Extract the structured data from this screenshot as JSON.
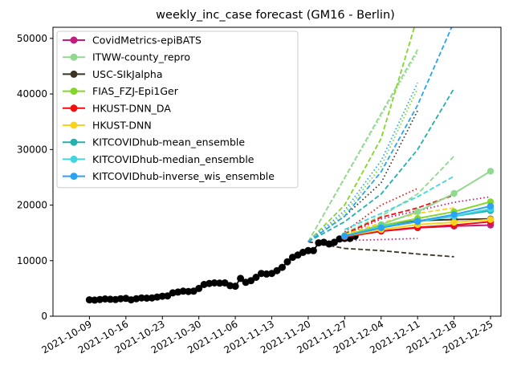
{
  "chart_data": {
    "type": "line",
    "title": "weekly_inc_case forecast (GM16 - Berlin)",
    "xlabel": "",
    "ylabel": "",
    "x_axis": {
      "type": "date",
      "range": [
        "2021-10-02",
        "2021-12-27"
      ],
      "ticks": [
        "2021-10-09",
        "2021-10-16",
        "2021-10-23",
        "2021-10-30",
        "2021-11-06",
        "2021-11-13",
        "2021-11-20",
        "2021-11-27",
        "2021-12-04",
        "2021-12-11",
        "2021-12-18",
        "2021-12-25"
      ]
    },
    "y_axis": {
      "range": [
        0,
        52000
      ],
      "ticks": [
        0,
        10000,
        20000,
        30000,
        40000,
        50000
      ]
    },
    "legend_position": "top-left",
    "grid": false,
    "observed": {
      "color": "#000000",
      "points": [
        [
          "2021-10-09",
          2950
        ],
        [
          "2021-10-10",
          2900
        ],
        [
          "2021-10-11",
          3000
        ],
        [
          "2021-10-12",
          3100
        ],
        [
          "2021-10-13",
          3050
        ],
        [
          "2021-10-14",
          3000
        ],
        [
          "2021-10-15",
          3150
        ],
        [
          "2021-10-16",
          3200
        ],
        [
          "2021-10-17",
          2950
        ],
        [
          "2021-10-18",
          3150
        ],
        [
          "2021-10-19",
          3300
        ],
        [
          "2021-10-20",
          3250
        ],
        [
          "2021-10-21",
          3300
        ],
        [
          "2021-10-22",
          3450
        ],
        [
          "2021-10-23",
          3600
        ],
        [
          "2021-10-24",
          3650
        ],
        [
          "2021-10-25",
          4200
        ],
        [
          "2021-10-26",
          4350
        ],
        [
          "2021-10-27",
          4500
        ],
        [
          "2021-10-28",
          4450
        ],
        [
          "2021-10-29",
          4500
        ],
        [
          "2021-10-30",
          5000
        ],
        [
          "2021-10-31",
          5700
        ],
        [
          "2021-11-01",
          5900
        ],
        [
          "2021-11-02",
          6000
        ],
        [
          "2021-11-03",
          5950
        ],
        [
          "2021-11-04",
          6000
        ],
        [
          "2021-11-05",
          5500
        ],
        [
          "2021-11-06",
          5400
        ],
        [
          "2021-11-07",
          6800
        ],
        [
          "2021-11-08",
          6100
        ],
        [
          "2021-11-09",
          6400
        ],
        [
          "2021-11-10",
          7000
        ],
        [
          "2021-11-11",
          7700
        ],
        [
          "2021-11-12",
          7600
        ],
        [
          "2021-11-13",
          7700
        ],
        [
          "2021-11-14",
          8200
        ],
        [
          "2021-11-15",
          8800
        ],
        [
          "2021-11-16",
          9800
        ],
        [
          "2021-11-17",
          10600
        ],
        [
          "2021-11-18",
          11000
        ],
        [
          "2021-11-19",
          11500
        ],
        [
          "2021-11-20",
          11800
        ],
        [
          "2021-11-21",
          11800
        ],
        [
          "2021-11-22",
          13200
        ],
        [
          "2021-11-23",
          13300
        ],
        [
          "2021-11-24",
          13000
        ],
        [
          "2021-11-25",
          13300
        ],
        [
          "2021-11-26",
          13900
        ],
        [
          "2021-11-27",
          14000
        ],
        [
          "2021-11-28",
          14000
        ],
        [
          "2021-11-29",
          14400
        ]
      ]
    },
    "series": [
      {
        "name": "CovidMetrics-epiBATS",
        "color": "#c51b7d",
        "points": [
          [
            "2021-11-27",
            14300
          ],
          [
            "2021-12-04",
            15300
          ],
          [
            "2021-12-11",
            15900
          ],
          [
            "2021-12-18",
            16200
          ],
          [
            "2021-12-25",
            16400
          ]
        ],
        "bands": [
          {
            "style": "dotted",
            "points": [
              [
                "2021-11-27",
                14600
              ],
              [
                "2021-12-04",
                17500
              ],
              [
                "2021-12-11",
                19000
              ],
              [
                "2021-12-18",
                20500
              ],
              [
                "2021-12-25",
                21500
              ]
            ]
          },
          {
            "style": "dotted",
            "points": [
              [
                "2021-11-27",
                13600
              ],
              [
                "2021-12-04",
                13800
              ],
              [
                "2021-12-11",
                14000
              ]
            ]
          }
        ]
      },
      {
        "name": "ITWW-county_repro",
        "color": "#91d88f",
        "points": [
          [
            "2021-11-27",
            14400
          ],
          [
            "2021-12-04",
            16500
          ],
          [
            "2021-12-11",
            18800
          ],
          [
            "2021-12-18",
            22100
          ],
          [
            "2021-12-25",
            26100
          ]
        ],
        "bands": [
          {
            "style": "dashed",
            "points": [
              [
                "2021-11-27",
                15000
              ],
              [
                "2021-12-04",
                18000
              ],
              [
                "2021-12-11",
                22000
              ],
              [
                "2021-12-18",
                28800
              ]
            ]
          },
          {
            "style": "dashed",
            "points": [
              [
                "2021-11-20",
                13400
              ],
              [
                "2021-12-11",
                48000
              ]
            ]
          },
          {
            "style": "dotted",
            "points": [
              [
                "2021-11-20",
                13400
              ],
              [
                "2021-12-11",
                47500
              ]
            ]
          }
        ]
      },
      {
        "name": "USC-SIkJalpha",
        "color": "#3d3226",
        "points": [
          [
            "2021-11-27",
            14400
          ],
          [
            "2021-12-04",
            16200
          ],
          [
            "2021-12-11",
            17200
          ],
          [
            "2021-12-18",
            17400
          ],
          [
            "2021-12-25",
            17500
          ]
        ],
        "bands": [
          {
            "style": "dashed",
            "points": [
              [
                "2021-11-20",
                13400
              ],
              [
                "2021-11-27",
                12200
              ],
              [
                "2021-12-04",
                11800
              ],
              [
                "2021-12-11",
                11200
              ],
              [
                "2021-12-18",
                10700
              ]
            ]
          },
          {
            "style": "dotted",
            "points": [
              [
                "2021-11-20",
                13400
              ],
              [
                "2021-11-27",
                18000
              ],
              [
                "2021-12-04",
                24000
              ],
              [
                "2021-12-11",
                37000
              ]
            ]
          }
        ]
      },
      {
        "name": "FIAS_FZJ-Epi1Ger",
        "color": "#84d62c",
        "points": [
          [
            "2021-11-27",
            14500
          ],
          [
            "2021-12-04",
            16300
          ],
          [
            "2021-12-11",
            17600
          ],
          [
            "2021-12-18",
            18800
          ],
          [
            "2021-12-25",
            20600
          ]
        ],
        "bands": [
          {
            "style": "dashed",
            "points": [
              [
                "2021-11-20",
                13400
              ],
              [
                "2021-11-27",
                20000
              ],
              [
                "2021-12-04",
                32000
              ],
              [
                "2021-12-11",
                54000
              ]
            ]
          },
          {
            "style": "dotted",
            "points": [
              [
                "2021-11-20",
                13400
              ],
              [
                "2021-11-27",
                18500
              ],
              [
                "2021-12-04",
                27000
              ],
              [
                "2021-12-11",
                41000
              ]
            ]
          }
        ]
      },
      {
        "name": "HKUST-DNN_DA",
        "color": "#f00f0f",
        "points": [
          [
            "2021-11-27",
            14300
          ],
          [
            "2021-12-04",
            15300
          ],
          [
            "2021-12-11",
            16000
          ],
          [
            "2021-12-18",
            16400
          ],
          [
            "2021-12-25",
            17000
          ]
        ],
        "bands": [
          {
            "style": "dashed",
            "points": [
              [
                "2021-11-27",
                14800
              ],
              [
                "2021-12-04",
                17800
              ],
              [
                "2021-12-11",
                19500
              ],
              [
                "2021-12-18",
                21800
              ]
            ]
          },
          {
            "style": "dotted",
            "points": [
              [
                "2021-11-27",
                15200
              ],
              [
                "2021-12-04",
                20000
              ],
              [
                "2021-12-11",
                23000
              ]
            ]
          }
        ]
      },
      {
        "name": "HKUST-DNN",
        "color": "#f9d31b",
        "points": [
          [
            "2021-11-27",
            14400
          ],
          [
            "2021-12-04",
            15600
          ],
          [
            "2021-12-11",
            16500
          ],
          [
            "2021-12-18",
            16900
          ],
          [
            "2021-12-25",
            17400
          ]
        ],
        "bands": [
          {
            "style": "dashed",
            "points": [
              [
                "2021-11-27",
                14700
              ],
              [
                "2021-12-04",
                16800
              ],
              [
                "2021-12-11",
                18500
              ],
              [
                "2021-12-18",
                19500
              ]
            ]
          }
        ]
      },
      {
        "name": "KITCOVIDhub-mean_ensemble",
        "color": "#22b1ab",
        "points": [
          [
            "2021-11-27",
            14400
          ],
          [
            "2021-12-04",
            16000
          ],
          [
            "2021-12-11",
            17000
          ],
          [
            "2021-12-18",
            18000
          ],
          [
            "2021-12-25",
            19000
          ]
        ],
        "bands": [
          {
            "style": "dashed",
            "points": [
              [
                "2021-11-20",
                13400
              ],
              [
                "2021-11-27",
                17000
              ],
              [
                "2021-12-04",
                22000
              ],
              [
                "2021-12-11",
                30000
              ],
              [
                "2021-12-18",
                41000
              ]
            ]
          }
        ]
      },
      {
        "name": "KITCOVIDhub-median_ensemble",
        "color": "#3fd6e0",
        "points": [
          [
            "2021-11-27",
            14400
          ],
          [
            "2021-12-04",
            16100
          ],
          [
            "2021-12-11",
            17100
          ],
          [
            "2021-12-18",
            18000
          ],
          [
            "2021-12-25",
            19300
          ]
        ],
        "bands": [
          {
            "style": "dashed",
            "points": [
              [
                "2021-11-27",
                15600
              ],
              [
                "2021-12-04",
                18500
              ],
              [
                "2021-12-11",
                21500
              ],
              [
                "2021-12-18",
                25200
              ]
            ]
          }
        ]
      },
      {
        "name": "KITCOVIDhub-inverse_wis_ensemble",
        "color": "#2aa3f4",
        "points": [
          [
            "2021-11-27",
            14400
          ],
          [
            "2021-12-04",
            15900
          ],
          [
            "2021-12-11",
            17100
          ],
          [
            "2021-12-18",
            18300
          ],
          [
            "2021-12-25",
            19800
          ]
        ],
        "bands": [
          {
            "style": "dashed",
            "points": [
              [
                "2021-11-20",
                13400
              ],
              [
                "2021-11-27",
                18000
              ],
              [
                "2021-12-04",
                26000
              ],
              [
                "2021-12-11",
                38000
              ],
              [
                "2021-12-18",
                53000
              ]
            ]
          },
          {
            "style": "dotted",
            "points": [
              [
                "2021-11-20",
                13400
              ],
              [
                "2021-11-27",
                19000
              ],
              [
                "2021-12-04",
                28000
              ],
              [
                "2021-12-11",
                42000
              ]
            ]
          }
        ]
      }
    ]
  }
}
